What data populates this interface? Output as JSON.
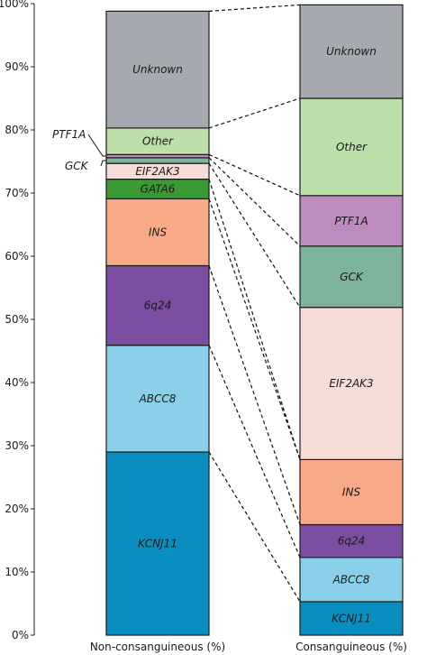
{
  "chart_data": {
    "type": "bar",
    "stacked": true,
    "normalized_percent": true,
    "categories": [
      "Non-consanguineous (%)",
      "Consanguineous (%)"
    ],
    "series": [
      {
        "name": "KCNJ11",
        "color": "#0a8dbf",
        "values": [
          29.0,
          5.3
        ]
      },
      {
        "name": "ABCC8",
        "color": "#8ad0e8",
        "values": [
          16.9,
          7.0
        ]
      },
      {
        "name": "6q24",
        "color": "#7b4ea2",
        "values": [
          12.6,
          5.2
        ]
      },
      {
        "name": "INS",
        "color": "#f7a988",
        "values": [
          10.6,
          10.3
        ]
      },
      {
        "name": "GATA6",
        "color": "#3c9a35",
        "values": [
          3.1,
          0
        ]
      },
      {
        "name": "EIF2AK3",
        "color": "#f6dcd6",
        "values": [
          2.5,
          24.1
        ]
      },
      {
        "name": "GCK",
        "color": "#7db39a",
        "values": [
          0.9,
          9.7
        ]
      },
      {
        "name": "PTF1A",
        "color": "#bd8bbf",
        "values": [
          0.5,
          8.0
        ]
      },
      {
        "name": "Other",
        "color": "#bddfa9",
        "values": [
          4.2,
          15.4
        ]
      },
      {
        "name": "Unknown",
        "color": "#a6aab0",
        "values": [
          18.5,
          14.8
        ]
      }
    ],
    "y_ticks": [
      "0%",
      "10%",
      "20%",
      "30%",
      "40%",
      "50%",
      "60%",
      "70%",
      "80%",
      "90%",
      "100%"
    ],
    "ylim": [
      0,
      100
    ],
    "side_labels": [
      "PTF1A",
      "GCK"
    ],
    "connector_lines": "dashed"
  }
}
